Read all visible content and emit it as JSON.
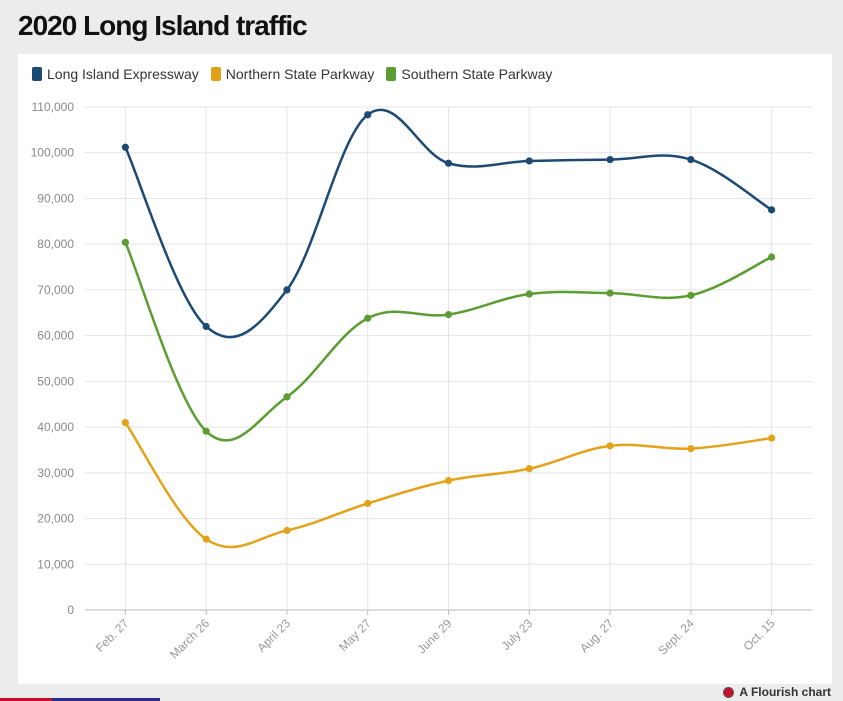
{
  "title": "2020 Long Island traffic",
  "footer": {
    "label": "A Flourish chart"
  },
  "chart_data": {
    "type": "line",
    "title": "2020 Long Island traffic",
    "xlabel": "",
    "ylabel": "",
    "categories": [
      "Feb. 27",
      "March 26",
      "April 23",
      "May 27",
      "June 29",
      "July 23",
      "Aug. 27",
      "Sept. 24",
      "Oct. 15"
    ],
    "ylim": [
      0,
      110000
    ],
    "yticks": [
      0,
      10000,
      20000,
      30000,
      40000,
      50000,
      60000,
      70000,
      80000,
      90000,
      100000,
      110000
    ],
    "ytick_labels": [
      "0",
      "10,000",
      "20,000",
      "30,000",
      "40,000",
      "50,000",
      "60,000",
      "70,000",
      "80,000",
      "90,000",
      "100,000",
      "110,000"
    ],
    "grid": true,
    "legend_position": "top-left",
    "series": [
      {
        "name": "Long Island Expressway",
        "color": "#1c4a74",
        "values": [
          101200,
          62000,
          70000,
          108300,
          97700,
          98200,
          98500,
          98500,
          87500
        ]
      },
      {
        "name": "Northern State Parkway",
        "color": "#e4a21a",
        "values": [
          41000,
          15500,
          17400,
          23300,
          28300,
          30900,
          35900,
          35300,
          37600
        ]
      },
      {
        "name": "Southern State Parkway",
        "color": "#5b9d32",
        "values": [
          80400,
          39100,
          46600,
          63800,
          64600,
          69100,
          69300,
          68800,
          77200
        ]
      }
    ]
  }
}
